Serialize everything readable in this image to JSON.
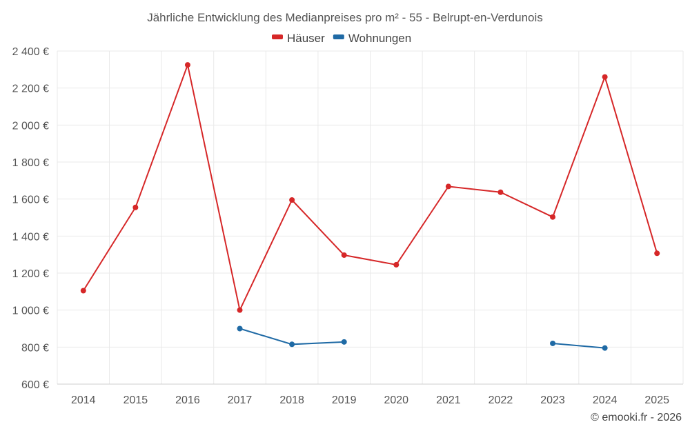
{
  "chart_data": {
    "type": "line",
    "title": "Jährliche Entwicklung des Medianpreises pro m² - 55 - Belrupt-en-Verdunois",
    "categories": [
      "2014",
      "2015",
      "2016",
      "2017",
      "2018",
      "2019",
      "2020",
      "2021",
      "2022",
      "2023",
      "2024",
      "2025"
    ],
    "ylim": [
      600,
      2400
    ],
    "yticks": [
      600,
      800,
      1000,
      1200,
      1400,
      1600,
      1800,
      2000,
      2200,
      2400
    ],
    "ytick_labels": [
      "600 €",
      "800 €",
      "1 000 €",
      "1 200 €",
      "1 400 €",
      "1 600 €",
      "1 800 €",
      "2 000 €",
      "2 200 €",
      "2 400 €"
    ],
    "grid": true,
    "legend_position": "top-center",
    "series": [
      {
        "name": "Häuser",
        "color": "#d62728",
        "values": [
          1105,
          1555,
          2325,
          1000,
          1595,
          1297,
          1245,
          1668,
          1637,
          1503,
          2260,
          1307
        ]
      },
      {
        "name": "Wohnungen",
        "color": "#1f6aa5",
        "values": [
          null,
          null,
          null,
          900,
          815,
          828,
          null,
          null,
          null,
          820,
          795,
          null
        ]
      }
    ]
  },
  "copyright": "© emooki.fr - 2026"
}
